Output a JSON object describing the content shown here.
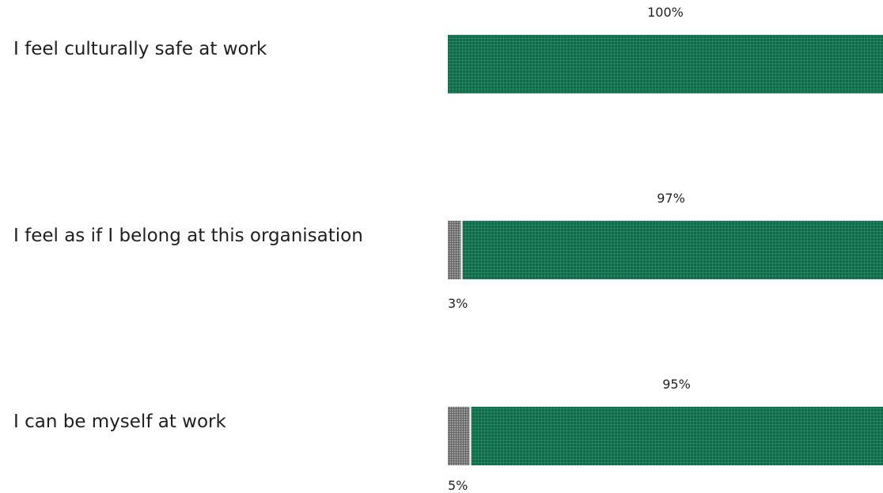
{
  "colors": {
    "agree": "#0e6b4a",
    "agree_grid": "#2f8a66",
    "disagree": "#8a8a8a",
    "disagree_grid": "#5c5c5c"
  },
  "chart_data": {
    "type": "bar",
    "orientation": "horizontal",
    "stacked": true,
    "xlim": [
      0,
      100
    ],
    "unit": "%",
    "categories": [
      "I feel culturally safe at work",
      "I feel as if I belong at this organisation",
      "I can be myself at work"
    ],
    "series": [
      {
        "key": "disagree",
        "values": [
          0,
          3,
          5
        ],
        "labels": [
          "",
          "3%",
          "5%"
        ]
      },
      {
        "key": "agree",
        "values": [
          100,
          97,
          95
        ],
        "labels": [
          "100%",
          "97%",
          "95%"
        ]
      }
    ]
  }
}
